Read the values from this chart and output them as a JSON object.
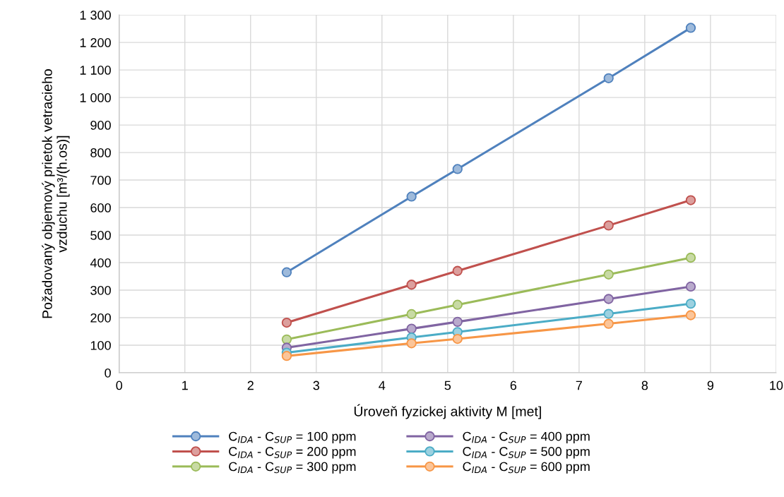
{
  "chart_data": {
    "type": "line",
    "xlabel": "Úroveň fyzickej aktivity M [met]",
    "ylabel": "Požadovaný objemový prietok vetracieho\nvzduchu [m³/(h.os)]",
    "x": [
      2.55,
      4.45,
      5.15,
      7.45,
      8.7
    ],
    "series": [
      {
        "name": "C$_{IDA}$ - C$_{SUP}$ = 100 ppm",
        "color": "#4f81bd",
        "values": [
          365,
          640,
          740,
          1070,
          1253
        ]
      },
      {
        "name": "C$_{IDA}$ - C$_{SUP}$ = 200 ppm",
        "color": "#c0504d",
        "values": [
          182,
          320,
          370,
          535,
          627
        ]
      },
      {
        "name": "C$_{IDA}$ - C$_{SUP}$ = 300 ppm",
        "color": "#9bbb59",
        "values": [
          121,
          213,
          247,
          357,
          418
        ]
      },
      {
        "name": "C$_{IDA}$ - C$_{SUP}$ = 400 ppm",
        "color": "#8064a2",
        "values": [
          91,
          160,
          185,
          268,
          313
        ]
      },
      {
        "name": "C$_{IDA}$ - C$_{SUP}$ = 500 ppm",
        "color": "#4bacc6",
        "values": [
          73,
          128,
          148,
          214,
          251
        ]
      },
      {
        "name": "C$_{IDA}$ - C$_{SUP}$ = 600 ppm",
        "color": "#f79646",
        "values": [
          61,
          107,
          123,
          178,
          209
        ]
      }
    ],
    "xlim": [
      0,
      10
    ],
    "xticks": [
      0,
      1,
      2,
      3,
      4,
      5,
      6,
      7,
      8,
      9,
      10
    ],
    "ylim": [
      0,
      1300
    ],
    "yticks": [
      0,
      100,
      200,
      300,
      400,
      500,
      600,
      700,
      800,
      900,
      {
        "value": 1000,
        "label": "1 000"
      },
      {
        "value": 1100,
        "label": "1 100"
      },
      {
        "value": 1200,
        "label": "1 200"
      },
      {
        "value": 1300,
        "label": "1 300"
      }
    ],
    "grid": true,
    "legend": "bottom",
    "marker": "circle",
    "line_style": "solid"
  }
}
